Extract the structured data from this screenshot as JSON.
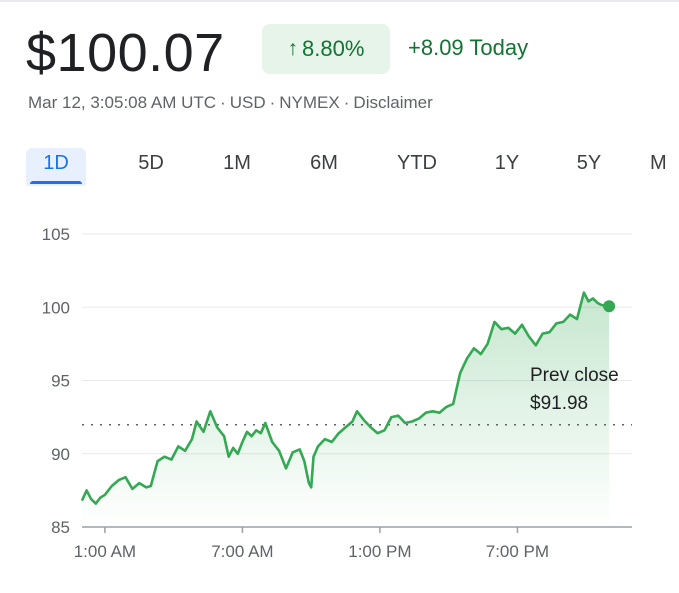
{
  "quote": {
    "price": "$100.07",
    "change_pct": "8.80%",
    "change_abs": "+8.09 Today",
    "arrow_icon": "arrow-up-icon",
    "positive_color": "#137333",
    "chip_color": "#e6f4ea"
  },
  "meta": {
    "timestamp": "Mar 12, 3:05:08 AM UTC",
    "currency": "USD",
    "exchange": "NYMEX",
    "disclaimer": "Disclaimer",
    "separator": "·"
  },
  "tabs": [
    {
      "label": "1D",
      "active": true
    },
    {
      "label": "5D",
      "active": false
    },
    {
      "label": "1M",
      "active": false
    },
    {
      "label": "6M",
      "active": false
    },
    {
      "label": "YTD",
      "active": false
    },
    {
      "label": "1Y",
      "active": false
    },
    {
      "label": "5Y",
      "active": false
    },
    {
      "label": "M",
      "active": false
    }
  ],
  "chart_data": {
    "type": "line",
    "line_color": "#34a853",
    "fill_color": "#34a853",
    "ylim": [
      85,
      105
    ],
    "yticks": [
      85,
      90,
      95,
      100,
      105
    ],
    "ytick_labels": [
      "85",
      "90",
      "95",
      "100",
      "105"
    ],
    "xlim": [
      0,
      24
    ],
    "xticks": [
      1,
      7,
      13,
      19
    ],
    "xtick_labels": [
      "1:00 AM",
      "7:00 AM",
      "1:00 PM",
      "7:00 PM"
    ],
    "grid": true,
    "prev_close": {
      "value": 91.98,
      "label": "Prev close",
      "value_label": "$91.98"
    },
    "series": [
      {
        "x": [
          0,
          0.2,
          0.4,
          0.6,
          0.8,
          1.0,
          1.3,
          1.6,
          1.9,
          2.2,
          2.5,
          2.8,
          3.0,
          3.3,
          3.6,
          3.9,
          4.2,
          4.5,
          4.8,
          5.0,
          5.3,
          5.6,
          5.9,
          6.2,
          6.4,
          6.6,
          6.8,
          7.0,
          7.2,
          7.4,
          7.6,
          7.8,
          8.0,
          8.3,
          8.6,
          8.9,
          9.2,
          9.5,
          9.7,
          9.9,
          10.0,
          10.1,
          10.3,
          10.6,
          10.9,
          11.2,
          11.5,
          11.8,
          12.0,
          12.3,
          12.6,
          12.9,
          13.2,
          13.5,
          13.8,
          14.1,
          14.4,
          14.7,
          15.0,
          15.3,
          15.6,
          15.9,
          16.2,
          16.5,
          16.8,
          17.1,
          17.4,
          17.7,
          18.0,
          18.3,
          18.6,
          18.9,
          19.2,
          19.5,
          19.8,
          20.1,
          20.4,
          20.7,
          21.0,
          21.3,
          21.6,
          21.9,
          22.1,
          22.3,
          22.5,
          22.6,
          22.8,
          23.0
        ],
        "y": [
          86.8,
          87.5,
          86.9,
          86.6,
          87.0,
          87.2,
          87.8,
          88.2,
          88.4,
          87.6,
          88.0,
          87.7,
          87.8,
          89.5,
          89.8,
          89.6,
          90.5,
          90.2,
          91.0,
          92.2,
          91.5,
          92.9,
          91.8,
          91.2,
          89.8,
          90.4,
          90.0,
          90.8,
          91.5,
          91.2,
          91.6,
          91.4,
          92.1,
          90.8,
          90.2,
          89.0,
          90.1,
          90.3,
          89.5,
          88.0,
          87.7,
          89.8,
          90.5,
          91.0,
          90.8,
          91.4,
          91.8,
          92.2,
          92.9,
          92.3,
          91.8,
          91.4,
          91.6,
          92.5,
          92.6,
          92.1,
          92.2,
          92.4,
          92.8,
          92.9,
          92.8,
          93.2,
          93.4,
          95.5,
          96.5,
          97.2,
          96.8,
          97.5,
          99.0,
          98.5,
          98.6,
          98.2,
          98.8,
          98.0,
          97.4,
          98.2,
          98.3,
          98.9,
          99.0,
          99.5,
          99.2,
          101.0,
          100.4,
          100.6,
          100.3,
          100.2,
          100.1,
          100.07
        ]
      }
    ]
  }
}
